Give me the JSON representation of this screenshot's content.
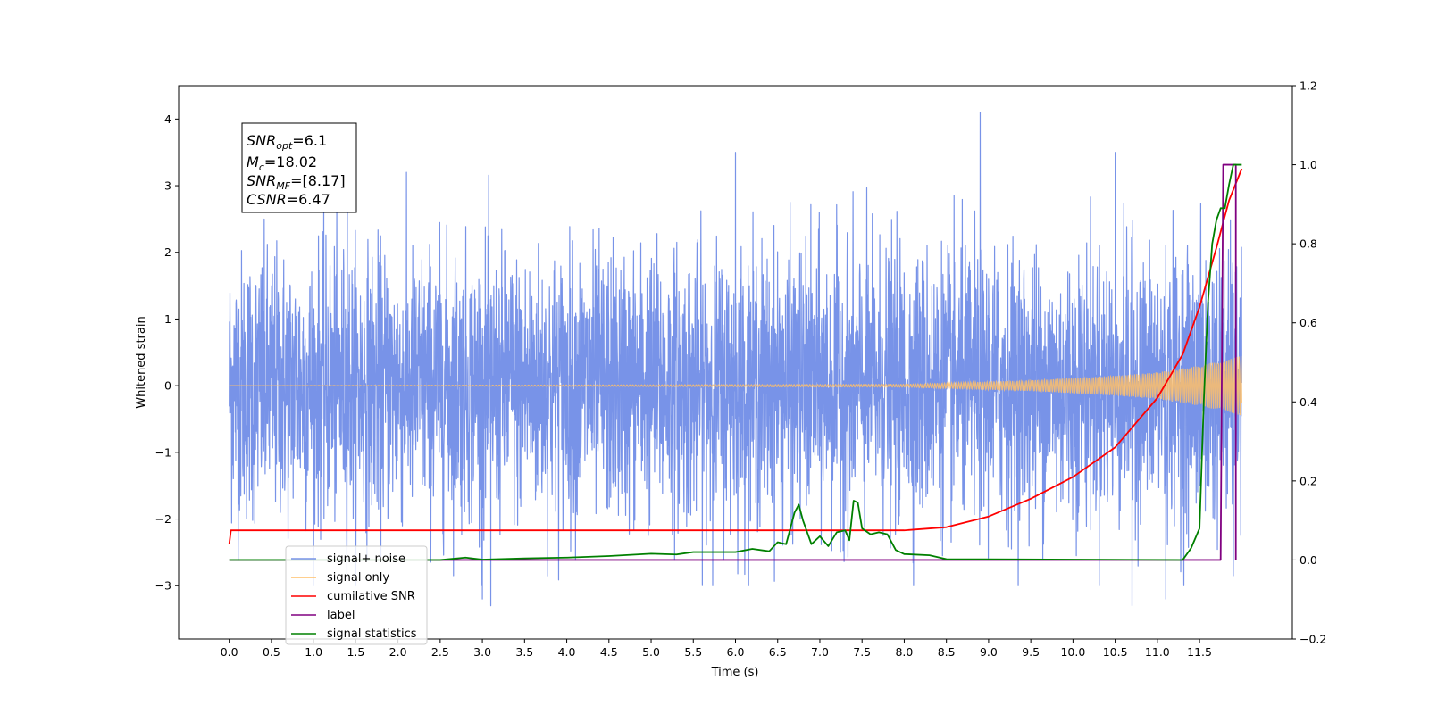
{
  "chart_data": {
    "type": "line",
    "xlabel": "Time (s)",
    "ylabel": "Whitened strain",
    "xlim": [
      -0.6,
      12.6
    ],
    "ylim": [
      -3.8,
      4.5
    ],
    "y2lim": [
      -0.2,
      1.2
    ],
    "x_ticks": [
      "0.0",
      "0.5",
      "1.0",
      "1.5",
      "2.0",
      "2.5",
      "3.0",
      "3.5",
      "4.0",
      "4.5",
      "5.0",
      "5.5",
      "6.0",
      "6.5",
      "7.0",
      "7.5",
      "8.0",
      "8.5",
      "9.0",
      "9.5",
      "10.0",
      "10.5",
      "11.0",
      "11.5"
    ],
    "y_ticks": [
      "4",
      "3",
      "2",
      "1",
      "0",
      "−1",
      "−2",
      "−3"
    ],
    "y2_ticks": [
      "1.2",
      "1.0",
      "0.8",
      "0.6",
      "0.4",
      "0.2",
      "0.0",
      "−0.2"
    ],
    "annotation": {
      "lines": [
        {
          "sym": "SNR",
          "sub": "opt",
          "val": "=6.1"
        },
        {
          "sym": "M",
          "sub": "c",
          "val": "=18.02"
        },
        {
          "sym": "SNR",
          "sub": "MF",
          "val": "=[8.17]"
        },
        {
          "sym": "CSNR",
          "sub": "",
          "val": "=6.47"
        }
      ]
    },
    "legend": {
      "placement": "lower-left",
      "entries": [
        {
          "label": "signal+ noise",
          "color": "#7893e8"
        },
        {
          "label": "signal only",
          "color": "#ffbf69"
        },
        {
          "label": "cumilative SNR",
          "color": "#ff0000"
        },
        {
          "label": "label",
          "color": "#800080"
        },
        {
          "label": "signal statistics",
          "color": "#008000"
        }
      ]
    },
    "series": [
      {
        "name": "signal+ noise",
        "axis": "left",
        "color": "#7893e8",
        "x_range": [
          0,
          12
        ],
        "approx_amplitude_std": 1.0,
        "peaks": [
          [
            8.9,
            4.1
          ],
          [
            1.4,
            3.4
          ],
          [
            6.0,
            3.5
          ],
          [
            10.5,
            3.5
          ],
          [
            3.1,
            -3.3
          ],
          [
            10.7,
            -3.3
          ],
          [
            3.0,
            -3.2
          ],
          [
            11.1,
            -3.2
          ],
          [
            11.9,
            -2.85
          ]
        ]
      },
      {
        "name": "signal only",
        "axis": "left",
        "color": "#ffbf69",
        "x_range": [
          0,
          12
        ],
        "envelope": [
          [
            0,
            0.0
          ],
          [
            8.0,
            0.02
          ],
          [
            9.5,
            0.08
          ],
          [
            10.5,
            0.15
          ],
          [
            11.0,
            0.2
          ],
          [
            11.5,
            0.3
          ],
          [
            12.0,
            0.45
          ]
        ]
      },
      {
        "name": "cumilative SNR",
        "axis": "right",
        "color": "#ff0000",
        "points": [
          [
            0,
            0.04
          ],
          [
            0.02,
            0.075
          ],
          [
            5.0,
            0.075
          ],
          [
            8.0,
            0.075
          ],
          [
            8.5,
            0.083
          ],
          [
            9.0,
            0.11
          ],
          [
            9.5,
            0.155
          ],
          [
            10.0,
            0.21
          ],
          [
            10.5,
            0.285
          ],
          [
            11.0,
            0.41
          ],
          [
            11.3,
            0.52
          ],
          [
            11.5,
            0.64
          ],
          [
            11.7,
            0.79
          ],
          [
            11.85,
            0.91
          ],
          [
            12.0,
            0.99
          ]
        ]
      },
      {
        "name": "label",
        "axis": "right",
        "color": "#800080",
        "points": [
          [
            0,
            0.0
          ],
          [
            11.75,
            0.0
          ],
          [
            11.78,
            1.0
          ],
          [
            11.93,
            1.0
          ],
          [
            11.93,
            0.0
          ]
        ]
      },
      {
        "name": "signal statistics",
        "axis": "right",
        "color": "#008000",
        "points": [
          [
            0,
            0.0
          ],
          [
            2.5,
            0.0
          ],
          [
            2.8,
            0.006
          ],
          [
            3.0,
            0.001
          ],
          [
            3.5,
            0.004
          ],
          [
            4.0,
            0.006
          ],
          [
            4.5,
            0.01
          ],
          [
            5.0,
            0.016
          ],
          [
            5.3,
            0.014
          ],
          [
            5.5,
            0.02
          ],
          [
            6.0,
            0.02
          ],
          [
            6.2,
            0.028
          ],
          [
            6.4,
            0.022
          ],
          [
            6.5,
            0.045
          ],
          [
            6.6,
            0.04
          ],
          [
            6.7,
            0.12
          ],
          [
            6.75,
            0.14
          ],
          [
            6.8,
            0.1
          ],
          [
            6.9,
            0.04
          ],
          [
            7.0,
            0.06
          ],
          [
            7.1,
            0.035
          ],
          [
            7.2,
            0.07
          ],
          [
            7.3,
            0.075
          ],
          [
            7.35,
            0.05
          ],
          [
            7.4,
            0.15
          ],
          [
            7.45,
            0.145
          ],
          [
            7.5,
            0.08
          ],
          [
            7.6,
            0.065
          ],
          [
            7.7,
            0.07
          ],
          [
            7.8,
            0.065
          ],
          [
            7.9,
            0.025
          ],
          [
            8.0,
            0.015
          ],
          [
            8.3,
            0.012
          ],
          [
            8.5,
            0.002
          ],
          [
            11.3,
            0.0
          ],
          [
            11.4,
            0.03
          ],
          [
            11.5,
            0.08
          ],
          [
            11.55,
            0.4
          ],
          [
            11.6,
            0.65
          ],
          [
            11.65,
            0.8
          ],
          [
            11.7,
            0.86
          ],
          [
            11.75,
            0.89
          ],
          [
            11.8,
            0.89
          ],
          [
            11.85,
            0.95
          ],
          [
            11.9,
            1.0
          ],
          [
            12.0,
            1.0
          ]
        ]
      }
    ]
  }
}
